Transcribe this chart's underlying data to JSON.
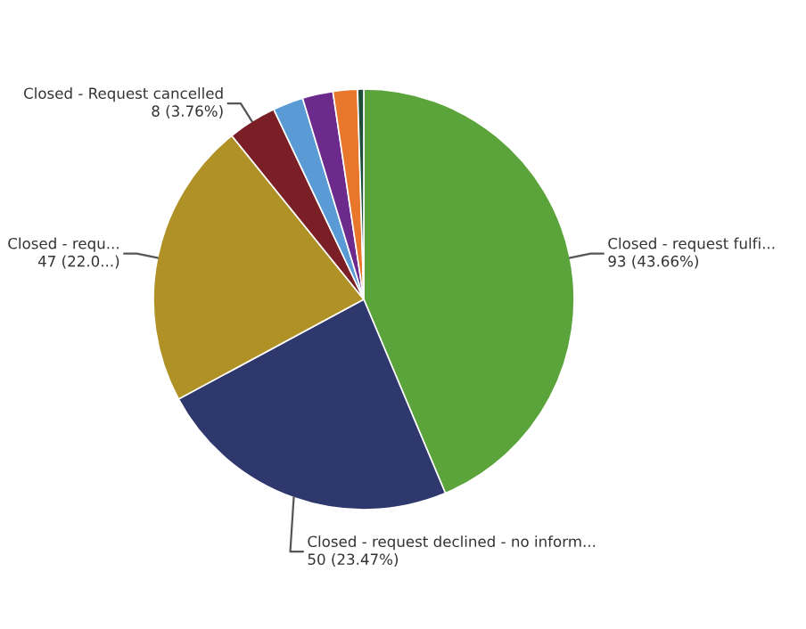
{
  "chart_data": {
    "type": "pie",
    "categories": [
      "Closed - request fulfi...",
      "Closed - request declined - no inform...",
      "Closed - requ...",
      "Closed - Request cancelled",
      null,
      null,
      null,
      null
    ],
    "values": [
      93,
      50,
      47,
      8,
      5,
      5,
      4,
      1
    ],
    "value_labels": [
      "93 (43.66%)",
      "50 (23.47%)",
      "47 (22.0...)",
      "8 (3.76%)",
      null,
      null,
      null,
      null
    ],
    "colors": [
      "#5ba33b",
      "#2e386c",
      "#b09125",
      "#7b1f27",
      "#5b9bd5",
      "#6b2a8c",
      "#e8762b",
      "#1e4d3a"
    ]
  }
}
